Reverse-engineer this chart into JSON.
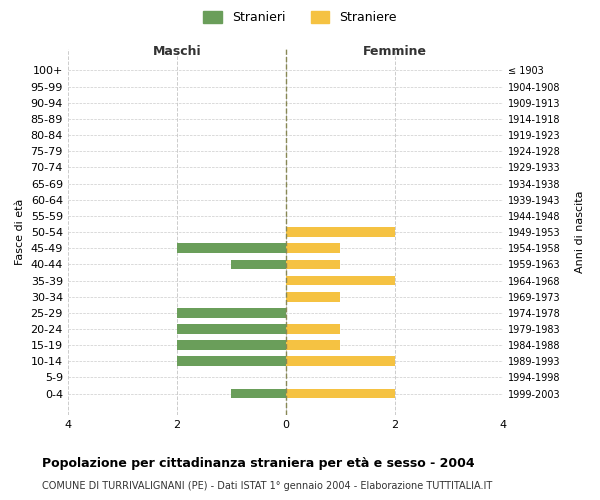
{
  "age_groups": [
    "100+",
    "95-99",
    "90-94",
    "85-89",
    "80-84",
    "75-79",
    "70-74",
    "65-69",
    "60-64",
    "55-59",
    "50-54",
    "45-49",
    "40-44",
    "35-39",
    "30-34",
    "25-29",
    "20-24",
    "15-19",
    "10-14",
    "5-9",
    "0-4"
  ],
  "birth_years": [
    "≤ 1903",
    "1904-1908",
    "1909-1913",
    "1914-1918",
    "1919-1923",
    "1924-1928",
    "1929-1933",
    "1934-1938",
    "1939-1943",
    "1944-1948",
    "1949-1953",
    "1954-1958",
    "1959-1963",
    "1964-1968",
    "1969-1973",
    "1974-1978",
    "1979-1983",
    "1984-1988",
    "1989-1993",
    "1994-1998",
    "1999-2003"
  ],
  "stranieri": [
    0,
    0,
    0,
    0,
    0,
    0,
    0,
    0,
    0,
    0,
    0,
    2,
    1,
    0,
    0,
    2,
    2,
    2,
    2,
    0,
    1
  ],
  "straniere": [
    0,
    0,
    0,
    0,
    0,
    0,
    0,
    0,
    0,
    0,
    2,
    1,
    1,
    2,
    1,
    0,
    1,
    1,
    2,
    0,
    2
  ],
  "color_stranieri": "#6a9e5a",
  "color_straniere": "#f5c242",
  "xlim": [
    -4,
    4
  ],
  "xticks": [
    -4,
    -2,
    0,
    2,
    4
  ],
  "xticklabels": [
    "4",
    "2",
    "0",
    "2",
    "4"
  ],
  "title": "Popolazione per cittadinanza straniera per età e sesso - 2004",
  "subtitle": "COMUNE DI TURRIVALIGNANI (PE) - Dati ISTAT 1° gennaio 2004 - Elaborazione TUTTITALIA.IT",
  "ylabel_left": "Fasce di età",
  "ylabel_right": "Anni di nascita",
  "label_maschi": "Maschi",
  "label_femmine": "Femmine",
  "legend_stranieri": "Stranieri",
  "legend_straniere": "Straniere",
  "background_color": "#ffffff",
  "grid_color": "#cccccc"
}
